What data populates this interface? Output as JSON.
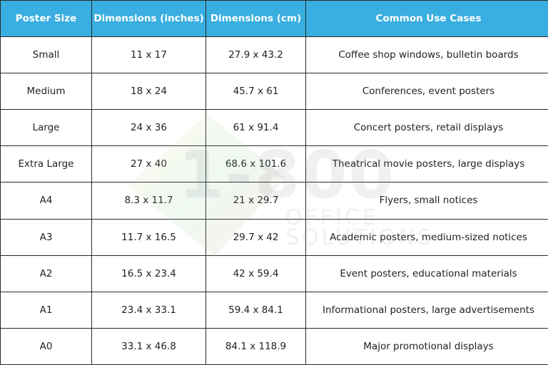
{
  "table": {
    "headers": [
      "Poster Size",
      "Dimensions (inches)",
      "Dimensions (cm)",
      "Common Use Cases"
    ],
    "rows": [
      [
        "Small",
        "11 x 17",
        "27.9 x 43.2",
        "Coffee shop windows, bulletin boards"
      ],
      [
        "Medium",
        "18 x 24",
        "45.7 x 61",
        "Conferences, event posters"
      ],
      [
        "Large",
        "24 x 36",
        "61 x 91.4",
        "Concert posters, retail displays"
      ],
      [
        "Extra Large",
        "27 x 40",
        "68.6 x 101.6",
        "Theatrical movie posters, large displays"
      ],
      [
        "A4",
        "8.3 x 11.7",
        "21 x 29.7",
        "Flyers, small notices"
      ],
      [
        "A3",
        "11.7 x 16.5",
        "29.7 x 42",
        "Academic posters, medium-sized notices"
      ],
      [
        "A2",
        "16.5 x 23.4",
        "42 x 59.4",
        "Event posters, educational materials"
      ],
      [
        "A1",
        "23.4 x 33.1",
        "59.4 x 84.1",
        "Informational posters, large advertisements"
      ],
      [
        "A0",
        "33.1 x 46.8",
        "84.1 x 118.9",
        "Major promotional displays"
      ]
    ]
  },
  "watermark": {
    "logo": "1-800",
    "line1": "OFFICE",
    "line2": "SOLUTIONS"
  }
}
